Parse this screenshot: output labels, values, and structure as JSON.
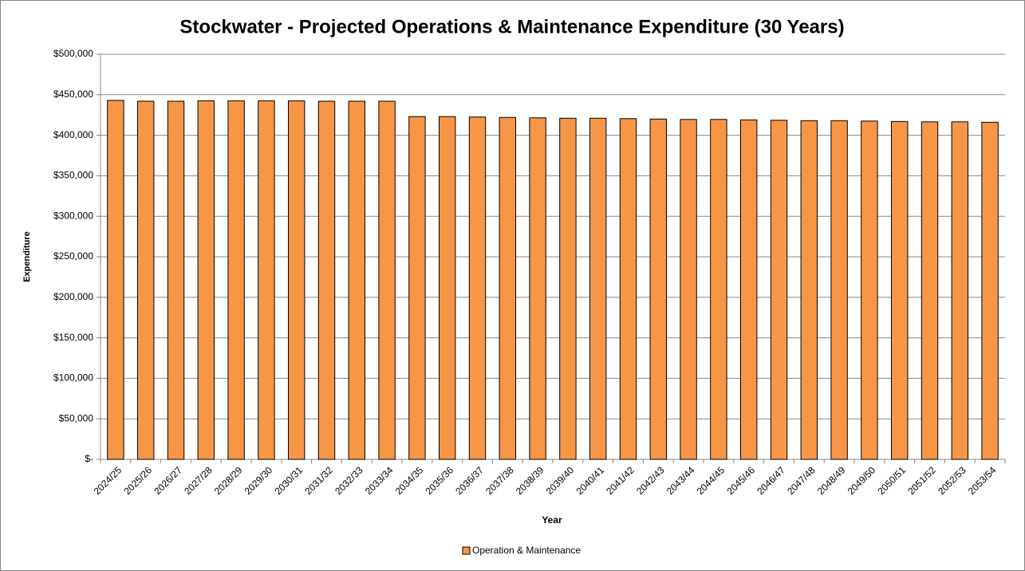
{
  "chart_data": {
    "type": "bar",
    "title": "Stockwater - Projected Operations & Maintenance Expenditure (30 Years)",
    "x_label": "Year",
    "y_label": "Expenditure",
    "categories": [
      "2024/25",
      "2025/26",
      "2026/27",
      "2027/28",
      "2028/29",
      "2029/30",
      "2030/31",
      "2031/32",
      "2032/33",
      "2033/34",
      "2034/35",
      "2035/36",
      "2036/37",
      "2037/38",
      "2038/39",
      "2039/40",
      "2040/41",
      "2041/42",
      "2042/43",
      "2043/44",
      "2044/45",
      "2045/46",
      "2046/47",
      "2047/48",
      "2048/49",
      "2049/50",
      "2050/51",
      "2051/52",
      "2052/53",
      "2053/54"
    ],
    "series": [
      {
        "name": "Operation & Maintenance",
        "color": "#f79646",
        "values": [
          443000,
          442000,
          442000,
          442500,
          442500,
          442500,
          442500,
          442000,
          442000,
          442000,
          423000,
          423000,
          422500,
          422000,
          421500,
          421000,
          421000,
          420500,
          420000,
          419500,
          419500,
          419000,
          418500,
          418000,
          418000,
          417500,
          417000,
          416500,
          416500,
          416000
        ]
      }
    ],
    "ylim": [
      0,
      500000
    ],
    "yticks": [
      {
        "value": 0,
        "label": "$-"
      },
      {
        "value": 50000,
        "label": "$50,000"
      },
      {
        "value": 100000,
        "label": "$100,000"
      },
      {
        "value": 150000,
        "label": "$150,000"
      },
      {
        "value": 200000,
        "label": "$200,000"
      },
      {
        "value": 250000,
        "label": "$250,000"
      },
      {
        "value": 300000,
        "label": "$300,000"
      },
      {
        "value": 350000,
        "label": "$350,000"
      },
      {
        "value": 400000,
        "label": "$400,000"
      },
      {
        "value": 450000,
        "label": "$450,000"
      },
      {
        "value": 500000,
        "label": "$500,000"
      }
    ],
    "grid": true,
    "legend": "bottom"
  }
}
